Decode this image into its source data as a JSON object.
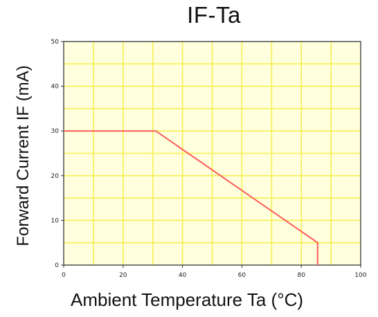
{
  "chart_data": {
    "type": "line",
    "title": "IF-Ta",
    "xlabel": "Ambient Temperature Ta (°C)",
    "ylabel": "Forward Current IF (mA)",
    "xlim": [
      0,
      100
    ],
    "ylim": [
      0,
      50
    ],
    "xticks": [
      0,
      20,
      40,
      60,
      80,
      100
    ],
    "yticks": [
      0,
      10,
      20,
      30,
      40,
      50
    ],
    "grid": true,
    "series": [
      {
        "x": [
          0,
          31,
          85.5,
          85.5
        ],
        "y": [
          30,
          30,
          5,
          0
        ]
      }
    ],
    "colors": {
      "background": "#ffffdd",
      "grid": "#f5ef52",
      "axis": "#333333",
      "line": "#ff5a5a"
    }
  }
}
